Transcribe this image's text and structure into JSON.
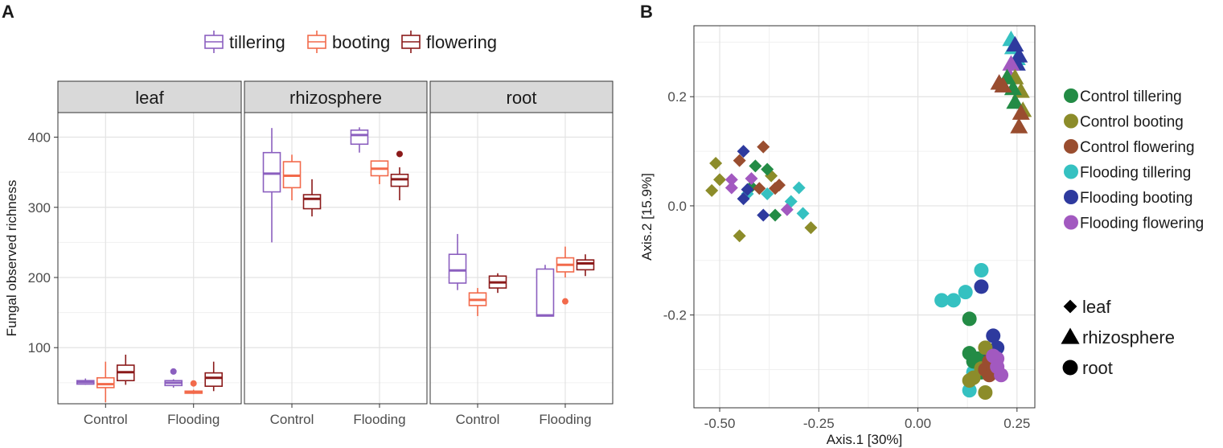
{
  "panel_a": {
    "label": "A",
    "legend": [
      {
        "name": "tillering",
        "color": "#8B5FBF"
      },
      {
        "name": "booting",
        "color": "#F26A4B"
      },
      {
        "name": "flowering",
        "color": "#8B1A1A"
      }
    ]
  },
  "panel_b": {
    "label": "B"
  },
  "chart_data": [
    {
      "type": "boxplot",
      "ylabel": "Fungal observed richness",
      "ylim": [
        20,
        435
      ],
      "yticks": [
        100,
        200,
        300,
        400
      ],
      "categories": [
        "Control",
        "Flooding"
      ],
      "facets": [
        {
          "name": "leaf",
          "boxes": [
            {
              "treatment": "Control",
              "stage": "tillering",
              "min": 47,
              "q1": 48,
              "median": 51,
              "q3": 53,
              "max": 56,
              "outliers": []
            },
            {
              "treatment": "Control",
              "stage": "booting",
              "min": 22,
              "q1": 43,
              "median": 48,
              "q3": 57,
              "max": 80,
              "outliers": []
            },
            {
              "treatment": "Control",
              "stage": "flowering",
              "min": 47,
              "q1": 53,
              "median": 65,
              "q3": 75,
              "max": 90,
              "outliers": []
            },
            {
              "treatment": "Flooding",
              "stage": "tillering",
              "min": 43,
              "q1": 46,
              "median": 50,
              "q3": 53,
              "max": 55,
              "outliers": [
                66
              ]
            },
            {
              "treatment": "Flooding",
              "stage": "booting",
              "min": 34,
              "q1": 35,
              "median": 37,
              "q3": 38,
              "max": 40,
              "outliers": [
                49
              ]
            },
            {
              "treatment": "Flooding",
              "stage": "flowering",
              "min": 38,
              "q1": 45,
              "median": 57,
              "q3": 64,
              "max": 80,
              "outliers": []
            }
          ]
        },
        {
          "name": "rhizosphere",
          "boxes": [
            {
              "treatment": "Control",
              "stage": "tillering",
              "min": 250,
              "q1": 322,
              "median": 348,
              "q3": 378,
              "max": 413,
              "outliers": []
            },
            {
              "treatment": "Control",
              "stage": "booting",
              "min": 310,
              "q1": 328,
              "median": 345,
              "q3": 365,
              "max": 375,
              "outliers": []
            },
            {
              "treatment": "Control",
              "stage": "flowering",
              "min": 287,
              "q1": 298,
              "median": 312,
              "q3": 318,
              "max": 340,
              "outliers": []
            },
            {
              "treatment": "Flooding",
              "stage": "tillering",
              "min": 378,
              "q1": 390,
              "median": 403,
              "q3": 410,
              "max": 414,
              "outliers": []
            },
            {
              "treatment": "Flooding",
              "stage": "booting",
              "min": 333,
              "q1": 345,
              "median": 355,
              "q3": 366,
              "max": 366,
              "outliers": []
            },
            {
              "treatment": "Flooding",
              "stage": "flowering",
              "min": 310,
              "q1": 330,
              "median": 340,
              "q3": 347,
              "max": 357,
              "outliers": [
                376
              ]
            }
          ]
        },
        {
          "name": "root",
          "boxes": [
            {
              "treatment": "Control",
              "stage": "tillering",
              "min": 182,
              "q1": 192,
              "median": 210,
              "q3": 233,
              "max": 262,
              "outliers": []
            },
            {
              "treatment": "Control",
              "stage": "booting",
              "min": 145,
              "q1": 160,
              "median": 168,
              "q3": 178,
              "max": 185,
              "outliers": []
            },
            {
              "treatment": "Control",
              "stage": "flowering",
              "min": 178,
              "q1": 185,
              "median": 193,
              "q3": 202,
              "max": 206,
              "outliers": []
            },
            {
              "treatment": "Flooding",
              "stage": "tillering",
              "min": 145,
              "q1": 145,
              "median": 146,
              "q3": 212,
              "max": 218,
              "outliers": []
            },
            {
              "treatment": "Flooding",
              "stage": "booting",
              "min": 200,
              "q1": 208,
              "median": 218,
              "q3": 228,
              "max": 244,
              "outliers": [
                166
              ]
            },
            {
              "treatment": "Flooding",
              "stage": "flowering",
              "min": 202,
              "q1": 211,
              "median": 220,
              "q3": 225,
              "max": 233,
              "outliers": []
            }
          ]
        }
      ]
    },
    {
      "type": "scatter",
      "xlabel": "Axis.1   [30%]",
      "ylabel": "Axis.2   [15.9%]",
      "xlim": [
        -0.565,
        0.295
      ],
      "ylim": [
        -0.37,
        0.33
      ],
      "xticks": [
        -0.5,
        -0.25,
        0.0,
        0.25
      ],
      "xticklabels": [
        "-0.50",
        "-0.25",
        "0.00",
        "0.25"
      ],
      "yticks": [
        -0.2,
        0.0,
        0.2
      ],
      "yticklabels": [
        "-0.2",
        "0.0",
        "0.2"
      ],
      "color_legend": [
        {
          "name": "Control tillering",
          "color": "#238B45"
        },
        {
          "name": "Control booting",
          "color": "#8C8C2A"
        },
        {
          "name": "Control flowering",
          "color": "#994D2F"
        },
        {
          "name": "Flooding tillering",
          "color": "#35C1C1"
        },
        {
          "name": "Flooding booting",
          "color": "#2E3A9E"
        },
        {
          "name": "Flooding flowering",
          "color": "#A259C0"
        }
      ],
      "shape_legend": [
        {
          "name": "leaf",
          "shape": "diamond"
        },
        {
          "name": "rhizosphere",
          "shape": "triangle"
        },
        {
          "name": "root",
          "shape": "circle"
        }
      ],
      "series": [
        {
          "group": "Control booting",
          "compartment": "leaf",
          "points": [
            [
              -0.51,
              0.078
            ],
            [
              -0.5,
              0.048
            ],
            [
              -0.52,
              0.028
            ],
            [
              -0.45,
              -0.055
            ],
            [
              -0.27,
              -0.04
            ],
            [
              -0.37,
              0.055
            ]
          ]
        },
        {
          "group": "Control tillering",
          "compartment": "leaf",
          "points": [
            [
              -0.41,
              0.073
            ],
            [
              -0.38,
              0.067
            ],
            [
              -0.36,
              -0.017
            ],
            [
              -0.42,
              0.035
            ]
          ]
        },
        {
          "group": "Control flowering",
          "compartment": "leaf",
          "points": [
            [
              -0.45,
              0.083
            ],
            [
              -0.39,
              0.108
            ],
            [
              -0.4,
              0.032
            ],
            [
              -0.36,
              0.032
            ],
            [
              -0.35,
              0.038
            ]
          ]
        },
        {
          "group": "Flooding tillering",
          "compartment": "leaf",
          "points": [
            [
              -0.3,
              0.033
            ],
            [
              -0.29,
              -0.014
            ],
            [
              -0.38,
              0.022
            ],
            [
              -0.32,
              0.008
            ],
            [
              -0.43,
              0.022
            ]
          ]
        },
        {
          "group": "Flooding booting",
          "compartment": "leaf",
          "points": [
            [
              -0.44,
              0.1
            ],
            [
              -0.44,
              0.013
            ],
            [
              -0.39,
              -0.017
            ],
            [
              -0.43,
              0.03
            ]
          ]
        },
        {
          "group": "Flooding flowering",
          "compartment": "leaf",
          "points": [
            [
              -0.47,
              0.048
            ],
            [
              -0.47,
              0.033
            ],
            [
              -0.42,
              0.05
            ],
            [
              -0.33,
              -0.007
            ]
          ]
        },
        {
          "group": "Flooding tillering",
          "compartment": "rhizosphere",
          "points": [
            [
              0.235,
              0.305
            ],
            [
              0.24,
              0.29
            ],
            [
              0.25,
              0.27
            ]
          ]
        },
        {
          "group": "Flooding booting",
          "compartment": "rhizosphere",
          "points": [
            [
              0.245,
              0.295
            ],
            [
              0.255,
              0.275
            ],
            [
              0.25,
              0.26
            ]
          ]
        },
        {
          "group": "Flooding flowering",
          "compartment": "rhizosphere",
          "points": [
            [
              0.235,
              0.26
            ],
            [
              0.23,
              0.24
            ],
            [
              0.205,
              0.225
            ],
            [
              0.215,
              0.22
            ]
          ]
        },
        {
          "group": "Control booting",
          "compartment": "rhizosphere",
          "points": [
            [
              0.245,
              0.235
            ],
            [
              0.26,
              0.21
            ],
            [
              0.265,
              0.175
            ]
          ]
        },
        {
          "group": "Control tillering",
          "compartment": "rhizosphere",
          "points": [
            [
              0.225,
              0.235
            ],
            [
              0.24,
              0.215
            ],
            [
              0.245,
              0.19
            ]
          ]
        },
        {
          "group": "Control flowering",
          "compartment": "rhizosphere",
          "points": [
            [
              0.205,
              0.225
            ],
            [
              0.215,
              0.22
            ],
            [
              0.26,
              0.17
            ],
            [
              0.255,
              0.145
            ]
          ]
        },
        {
          "group": "Flooding tillering",
          "compartment": "root",
          "points": [
            [
              0.06,
              -0.173
            ],
            [
              0.09,
              -0.173
            ],
            [
              0.12,
              -0.158
            ],
            [
              0.16,
              -0.118
            ],
            [
              0.14,
              -0.305
            ],
            [
              0.13,
              -0.338
            ]
          ]
        },
        {
          "group": "Flooding booting",
          "compartment": "root",
          "points": [
            [
              0.16,
              -0.148
            ],
            [
              0.19,
              -0.238
            ],
            [
              0.2,
              -0.26
            ],
            [
              0.16,
              -0.28
            ],
            [
              0.19,
              -0.29
            ]
          ]
        },
        {
          "group": "Control tillering",
          "compartment": "root",
          "points": [
            [
              0.13,
              -0.207
            ],
            [
              0.13,
              -0.27
            ],
            [
              0.14,
              -0.285
            ],
            [
              0.16,
              -0.305
            ],
            [
              0.15,
              -0.28
            ]
          ]
        },
        {
          "group": "Control booting",
          "compartment": "root",
          "points": [
            [
              0.17,
              -0.26
            ],
            [
              0.16,
              -0.298
            ],
            [
              0.14,
              -0.315
            ],
            [
              0.13,
              -0.32
            ],
            [
              0.17,
              -0.342
            ]
          ]
        },
        {
          "group": "Control flowering",
          "compartment": "root",
          "points": [
            [
              0.18,
              -0.285
            ],
            [
              0.18,
              -0.31
            ],
            [
              0.17,
              -0.3
            ],
            [
              0.19,
              -0.3
            ]
          ]
        },
        {
          "group": "Flooding flowering",
          "compartment": "root",
          "points": [
            [
              0.2,
              -0.28
            ],
            [
              0.21,
              -0.31
            ],
            [
              0.19,
              -0.275
            ],
            [
              0.2,
              -0.295
            ]
          ]
        }
      ]
    }
  ]
}
